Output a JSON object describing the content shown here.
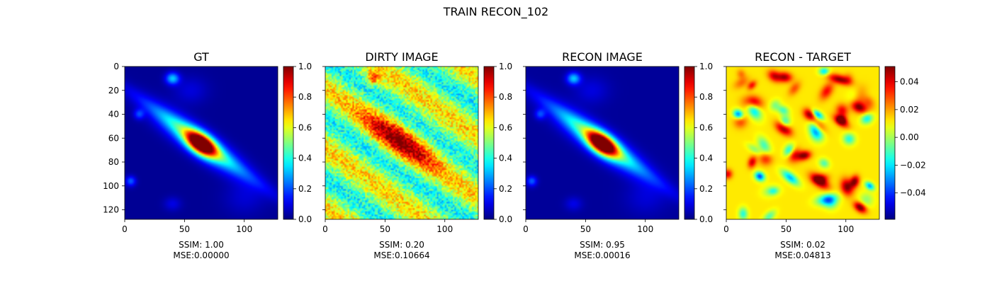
{
  "figure": {
    "suptitle": "TRAIN RECON_102"
  },
  "chart_data": [
    {
      "type": "heatmap",
      "title": "GT",
      "colormap": "jet",
      "x_ticks": [
        0,
        50,
        100
      ],
      "y_ticks": [
        0,
        20,
        40,
        60,
        80,
        100,
        120
      ],
      "extent": [
        0,
        128
      ],
      "colorbar_ticks": [
        0.0,
        0.2,
        0.4,
        0.6,
        0.8,
        1.0
      ],
      "colorbar_tick_labels": [
        "0.0",
        "0.2",
        "0.4",
        "0.6",
        "0.8",
        "1.0"
      ],
      "colorbar_range": [
        0.0,
        1.0
      ],
      "caption_ssim": "SSIM: 1.00",
      "caption_mse": "MSE:0.00000"
    },
    {
      "type": "heatmap",
      "title": "DIRTY IMAGE",
      "colormap": "jet",
      "x_ticks": [
        0,
        50,
        100
      ],
      "extent": [
        0,
        128
      ],
      "colorbar_ticks": [
        0.0,
        0.2,
        0.4,
        0.6,
        0.8,
        1.0
      ],
      "colorbar_tick_labels": [
        "0.0",
        "0.2",
        "0.4",
        "0.6",
        "0.8",
        "1.0"
      ],
      "colorbar_range": [
        0.0,
        1.0
      ],
      "caption_ssim": "SSIM: 0.20",
      "caption_mse": "MSE:0.10664"
    },
    {
      "type": "heatmap",
      "title": "RECON IMAGE",
      "colormap": "jet",
      "x_ticks": [
        0,
        50,
        100
      ],
      "extent": [
        0,
        128
      ],
      "colorbar_ticks": [
        0.0,
        0.2,
        0.4,
        0.6,
        0.8,
        1.0
      ],
      "colorbar_tick_labels": [
        "0.0",
        "0.2",
        "0.4",
        "0.6",
        "0.8",
        "1.0"
      ],
      "colorbar_range": [
        0.0,
        1.0
      ],
      "caption_ssim": "SSIM: 0.95",
      "caption_mse": "MSE:0.00016"
    },
    {
      "type": "heatmap",
      "title": "RECON - TARGET",
      "colormap": "jet",
      "x_ticks": [
        0,
        50,
        100
      ],
      "extent": [
        0,
        128
      ],
      "colorbar_ticks": [
        0.04,
        0.02,
        0.0,
        -0.02,
        -0.04
      ],
      "colorbar_tick_labels": [
        "0.04",
        "0.02",
        "0.00",
        "−0.02",
        "−0.04"
      ],
      "colorbar_range": [
        -0.059,
        0.051
      ],
      "caption_ssim": "SSIM: 0.02",
      "caption_mse": "MSE:0.04813"
    }
  ]
}
